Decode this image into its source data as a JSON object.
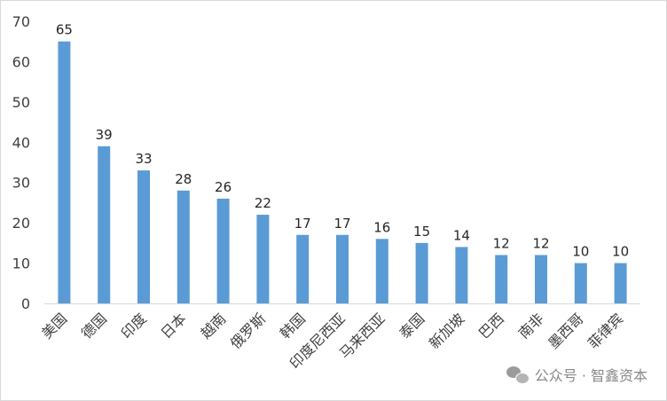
{
  "chart_data": {
    "type": "bar",
    "categories": [
      "美国",
      "德国",
      "印度",
      "日本",
      "越南",
      "俄罗斯",
      "韩国",
      "印度尼西亚",
      "马来西亚",
      "泰国",
      "新加坡",
      "巴西",
      "南非",
      "墨西哥",
      "菲律宾"
    ],
    "values": [
      65,
      39,
      33,
      28,
      26,
      22,
      17,
      17,
      16,
      15,
      14,
      12,
      12,
      10,
      10
    ],
    "y_ticks": [
      "0",
      "10",
      "20",
      "30",
      "40",
      "50",
      "60",
      "70"
    ],
    "ylim": [
      0,
      70
    ],
    "bar_color": "#5b9bd5",
    "grid": false,
    "data_labels": true,
    "title": "",
    "xlabel": "",
    "ylabel": ""
  },
  "watermark": {
    "icon": "wechat-icon",
    "text": "公众号 · 智鑫资本"
  }
}
